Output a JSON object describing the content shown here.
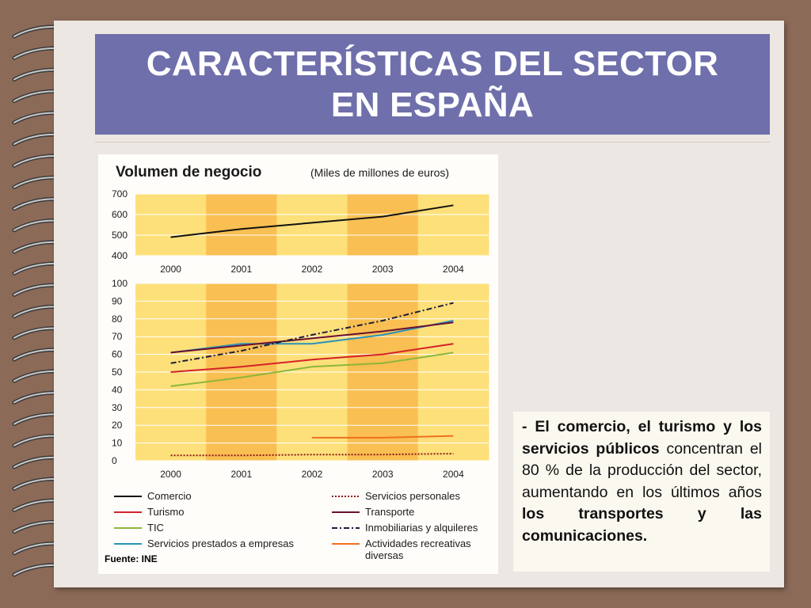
{
  "slide": {
    "title_line1": "CARACTERÍSTICAS DEL SECTOR",
    "title_line2": "EN ESPAÑA"
  },
  "side_text": {
    "bold_intro": "- El comercio, el turismo y los servicios públicos",
    "middle": " concentran el 80 % de la producción del sector, aumentando en los últimos años ",
    "bold_end": "los transportes y las comunicaciones."
  },
  "chart_data": {
    "type": "line",
    "title": "Volumen de negocio",
    "subtitle": "(Miles de millones de euros)",
    "source": "Fuente: INE",
    "x": [
      2000,
      2001,
      2002,
      2003,
      2004
    ],
    "x_tick_labels": [
      "2000",
      "2001",
      "2002",
      "2003",
      "2004"
    ],
    "panels": [
      {
        "id": "top",
        "ylim": [
          400,
          700
        ],
        "yticks": [
          400,
          500,
          600,
          700
        ],
        "series": [
          {
            "name": "Comercio",
            "color": "#111111",
            "dash": "solid",
            "values": [
              490,
              530,
              560,
              590,
              645
            ]
          }
        ]
      },
      {
        "id": "bottom",
        "ylim": [
          0,
          100
        ],
        "yticks": [
          0,
          10,
          20,
          30,
          40,
          50,
          60,
          70,
          80,
          90,
          100
        ],
        "series": [
          {
            "name": "Turismo",
            "color": "#d4232a",
            "dash": "solid",
            "values": [
              50,
              53,
              57,
              60,
              66
            ]
          },
          {
            "name": "TIC",
            "color": "#8cb63c",
            "dash": "solid",
            "values": [
              42,
              47,
              53,
              55,
              61
            ]
          },
          {
            "name": "Servicios prestados a empresas",
            "color": "#2a93b8",
            "dash": "solid",
            "values": [
              61,
              66,
              66,
              71,
              79
            ]
          },
          {
            "name": "Servicios personales",
            "color": "#8b1a1a",
            "dash": "dotted",
            "values": [
              3,
              3,
              3.5,
              3.5,
              4
            ]
          },
          {
            "name": "Transporte",
            "color": "#6b1030",
            "dash": "solid",
            "values": [
              61,
              65,
              69,
              73,
              78
            ]
          },
          {
            "name": "Inmobiliarias y alquileres",
            "color": "#1c1c3a",
            "dash": "dashdot",
            "values": [
              55,
              62,
              71,
              79,
              89
            ]
          },
          {
            "name": "Actividades recreativas diversas",
            "color": "#f07020",
            "dash": "solid",
            "values": [
              null,
              null,
              13,
              13,
              14
            ]
          }
        ]
      }
    ],
    "legend": {
      "placement": "bottom",
      "left": [
        {
          "label": "Comercio",
          "color": "#111111",
          "dash": "solid"
        },
        {
          "label": "Turismo",
          "color": "#d4232a",
          "dash": "solid"
        },
        {
          "label": "TIC",
          "color": "#8cb63c",
          "dash": "solid"
        },
        {
          "label": "Servicios prestados a empresas",
          "color": "#2a93b8",
          "dash": "solid"
        }
      ],
      "right": [
        {
          "label": "Servicios personales",
          "color": "#8b1a1a",
          "dash": "dotted"
        },
        {
          "label": "Transporte",
          "color": "#6b1030",
          "dash": "solid"
        },
        {
          "label": "Inmobiliarias y alquileres",
          "color": "#1c1c3a",
          "dash": "dashdot"
        },
        {
          "label": "Actividades recreativas",
          "label2": "diversas",
          "color": "#f07020",
          "dash": "solid"
        }
      ]
    },
    "colors": {
      "band_light": "#fde07a",
      "band_dark": "#f9bf52",
      "grid": "#ffffff"
    },
    "grid": true
  }
}
